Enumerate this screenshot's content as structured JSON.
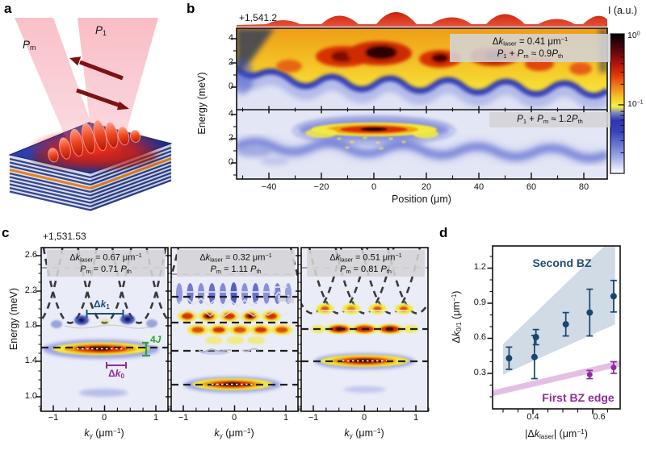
{
  "colors": {
    "dk1_blue": "#1b4e79",
    "dk0_purple": "#8d2d9b",
    "fourJ_green": "#2f9e44",
    "second_bz_text": "#1f4e79",
    "second_bz_fill": "#ccd7e2",
    "first_bz_text": "#8e2d9e",
    "first_bz_fill": "#e3bce3",
    "annotation_bg": "#d4d4d6"
  },
  "panel_a": {
    "label": "a",
    "pump_mirror_label": [
      {
        "t": "P",
        "i": 1
      },
      {
        "t": "m",
        "v": "sub"
      }
    ],
    "pump_main_label": [
      {
        "t": "P",
        "i": 1
      },
      {
        "t": "1",
        "v": "sub"
      }
    ]
  },
  "panel_b": {
    "label": "b",
    "energy_offset": "+1,541.2",
    "ylabel": "Energy (meV)",
    "xlabel": "Position (μm)",
    "y_ticks": [
      "4",
      "2",
      "0"
    ],
    "x_ticks": [
      "−40",
      "−20",
      "0",
      "20",
      "40",
      "60",
      "80"
    ],
    "annotation_top": {
      "line1": [
        {
          "t": "Δ"
        },
        {
          "t": "k",
          "i": 1
        },
        {
          "t": "laser",
          "v": "sub"
        },
        {
          "t": " = 0.41 μm"
        },
        {
          "t": "−1",
          "v": "sup"
        }
      ],
      "line2": [
        {
          "t": "P",
          "i": 1
        },
        {
          "t": "1",
          "v": "sub"
        },
        {
          "t": " + "
        },
        {
          "t": "P",
          "i": 1
        },
        {
          "t": "m",
          "v": "sub"
        },
        {
          "t": " ≈ 0.9"
        },
        {
          "t": "P",
          "i": 1
        },
        {
          "t": "th",
          "v": "sub"
        }
      ]
    },
    "annotation_bottom": {
      "line1": [
        {
          "t": "P",
          "i": 1
        },
        {
          "t": "1",
          "v": "sub"
        },
        {
          "t": " + "
        },
        {
          "t": "P",
          "i": 1
        },
        {
          "t": "m",
          "v": "sub"
        },
        {
          "t": " ≈ 1.2"
        },
        {
          "t": "P",
          "i": 1
        },
        {
          "t": "th",
          "v": "sub"
        }
      ]
    },
    "colorbar": {
      "title": "I (a.u.)",
      "tick_top": [
        {
          "t": "10"
        },
        {
          "t": "0",
          "v": "sup"
        }
      ],
      "tick_mid": [
        {
          "t": "10"
        },
        {
          "t": "−1",
          "v": "sup"
        }
      ]
    }
  },
  "panel_c": {
    "label": "c",
    "energy_offset": "+1,531.53",
    "ylabel": "Energy (meV)",
    "y_ticks": [
      "2.6",
      "2.2",
      "1.8",
      "1.4",
      "1.0"
    ],
    "x_ticks": [
      "−1",
      "0",
      "1"
    ],
    "xlabel": [
      {
        "t": "k",
        "i": 1
      },
      {
        "t": "y",
        "v": "sub"
      },
      {
        "t": " (μm"
      },
      {
        "t": "−1",
        "v": "sup"
      },
      {
        "t": ")"
      }
    ],
    "subpanels": [
      {
        "line1": [
          {
            "t": "Δ"
          },
          {
            "t": "k",
            "i": 1
          },
          {
            "t": "laser",
            "v": "sub"
          },
          {
            "t": " = 0.67 μm"
          },
          {
            "t": "−1",
            "v": "sup"
          }
        ],
        "line2": [
          {
            "t": "P",
            "i": 1
          },
          {
            "t": "m",
            "v": "sub"
          },
          {
            "t": " = 0.71 "
          },
          {
            "t": "P",
            "i": 1
          },
          {
            "t": "th",
            "v": "sub"
          }
        ]
      },
      {
        "line1": [
          {
            "t": "Δ"
          },
          {
            "t": "k",
            "i": 1
          },
          {
            "t": "laser",
            "v": "sub"
          },
          {
            "t": " = 0.32 μm"
          },
          {
            "t": "−1",
            "v": "sup"
          }
        ],
        "line2": [
          {
            "t": "P",
            "i": 1
          },
          {
            "t": "m",
            "v": "sub"
          },
          {
            "t": " = 1.11 "
          },
          {
            "t": "P",
            "i": 1
          },
          {
            "t": "th",
            "v": "sub"
          }
        ]
      },
      {
        "line1": [
          {
            "t": "Δ"
          },
          {
            "t": "k",
            "i": 1
          },
          {
            "t": "laser",
            "v": "sub"
          },
          {
            "t": " = 0.51 μm"
          },
          {
            "t": "−1",
            "v": "sup"
          }
        ],
        "line2": [
          {
            "t": "P",
            "i": 1
          },
          {
            "t": "m",
            "v": "sub"
          },
          {
            "t": " = 0.81 "
          },
          {
            "t": "P",
            "i": 1
          },
          {
            "t": "th",
            "v": "sub"
          }
        ]
      }
    ],
    "marker_dk1": [
      {
        "t": "Δ"
      },
      {
        "t": "k",
        "i": 1
      },
      {
        "t": "1",
        "v": "sub"
      }
    ],
    "marker_dk0": [
      {
        "t": "Δ"
      },
      {
        "t": "k",
        "i": 1
      },
      {
        "t": "0",
        "v": "sub"
      }
    ],
    "marker_4J": [
      {
        "t": "4"
      },
      {
        "t": "J",
        "i": 1
      }
    ]
  },
  "panel_d": {
    "label": "d",
    "ylabel": [
      {
        "t": "Δ"
      },
      {
        "t": "k",
        "i": 1
      },
      {
        "t": "0/1",
        "v": "sub"
      },
      {
        "t": " (μm"
      },
      {
        "t": "−1",
        "v": "sup"
      },
      {
        "t": ")"
      }
    ],
    "xlabel": [
      {
        "t": "|Δ"
      },
      {
        "t": "k",
        "i": 1
      },
      {
        "t": "laser",
        "v": "sub"
      },
      {
        "t": "| (μm"
      },
      {
        "t": "−1",
        "v": "sup"
      },
      {
        "t": ")"
      }
    ],
    "y_ticks": [
      "1.2",
      "0.9",
      "0.6",
      "0.3"
    ],
    "x_ticks": [
      "0.4",
      "0.6"
    ],
    "second_bz_label": "Second BZ",
    "first_bz_label": "First BZ edge",
    "chart_data": {
      "type": "scatter",
      "xlabel": "|Δk_laser| (μm⁻¹)",
      "ylabel": "Δk_0/1 (μm⁻¹)",
      "xlim": [
        0.265,
        0.692
      ],
      "ylim": [
        0,
        1.39
      ],
      "x_ticks": [
        0.4,
        0.6
      ],
      "y_ticks": [
        0.3,
        0.6,
        0.9,
        1.2
      ],
      "series": [
        {
          "name": "Second BZ",
          "color": "#17466f",
          "r": 4,
          "x": [
            0.32,
            0.405,
            0.41,
            0.51,
            0.59,
            0.67
          ],
          "y": [
            0.43,
            0.44,
            0.61,
            0.72,
            0.82,
            0.96
          ],
          "yerr": [
            0.095,
            0.185,
            0.065,
            0.1,
            0.2,
            0.135
          ]
        },
        {
          "name": "First BZ edge",
          "color": "#8e2d9e",
          "r": 3.5,
          "x": [
            0.59,
            0.67
          ],
          "y": [
            0.29,
            0.35
          ],
          "yerr": [
            0.035,
            0.05
          ]
        }
      ],
      "regions": [
        {
          "label": "Second BZ",
          "color": "#ccd7e2",
          "polygon": [
            [
              0.3,
              0.29
            ],
            [
              0.3,
              0.55
            ],
            [
              0.64,
              1.39
            ],
            [
              0.675,
              1.39
            ],
            [
              0.675,
              0.72
            ]
          ]
        },
        {
          "label": "First BZ edge",
          "color": "#e3bce3",
          "width": 0.05,
          "band_from": [
            0.265,
            0.13
          ],
          "band_to": [
            0.692,
            0.385
          ]
        }
      ]
    }
  }
}
